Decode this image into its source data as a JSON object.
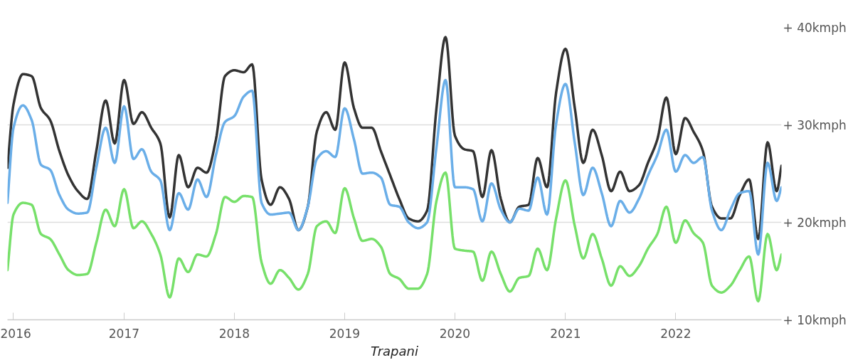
{
  "chart_data": {
    "type": "line",
    "title": "Trapani",
    "x": [
      "2015-12-12",
      "2016-01",
      "2016-02",
      "2016-03",
      "2016-04",
      "2016-05",
      "2016-06",
      "2016-07",
      "2016-08",
      "2016-09",
      "2016-10",
      "2016-11",
      "2016-12",
      "2017-01",
      "2017-02",
      "2017-03",
      "2017-04",
      "2017-05",
      "2017-06",
      "2017-07",
      "2017-08",
      "2017-09",
      "2017-10",
      "2017-11",
      "2017-12",
      "2018-01",
      "2018-02",
      "2018-03",
      "2018-04",
      "2018-05",
      "2018-06",
      "2018-07",
      "2018-08",
      "2018-09",
      "2018-10",
      "2018-11",
      "2018-12",
      "2019-01",
      "2019-02",
      "2019-03",
      "2019-04",
      "2019-05",
      "2019-06",
      "2019-07",
      "2019-08",
      "2019-09",
      "2019-10",
      "2019-11",
      "2019-12",
      "2020-01",
      "2020-02",
      "2020-03",
      "2020-04",
      "2020-05",
      "2020-06",
      "2020-07",
      "2020-08",
      "2020-09",
      "2020-10",
      "2020-11",
      "2020-12",
      "2021-01",
      "2021-02",
      "2021-03",
      "2021-04",
      "2021-05",
      "2021-06",
      "2021-07",
      "2021-08",
      "2021-09",
      "2021-10",
      "2021-11",
      "2021-12",
      "2022-01",
      "2022-02",
      "2022-03",
      "2022-04",
      "2022-05",
      "2022-06",
      "2022-07",
      "2022-08",
      "2022-09",
      "2022-10",
      "2022-11",
      "2022-12",
      "2022-12-17"
    ],
    "series": [
      {
        "color": "#333333",
        "values": [
          25.6,
          32.1,
          35.2,
          35.0,
          31.7,
          30.5,
          27.3,
          24.8,
          23.2,
          22.4,
          27.3,
          32.5,
          28.1,
          34.6,
          30.1,
          31.3,
          29.7,
          28.1,
          20.5,
          26.9,
          23.6,
          25.6,
          25.1,
          28.5,
          35.0,
          35.6,
          35.4,
          36.2,
          24.4,
          21.8,
          23.6,
          22.4,
          19.2,
          21.6,
          29.3,
          31.3,
          29.5,
          36.4,
          31.7,
          29.7,
          29.7,
          27.3,
          24.8,
          22.4,
          20.4,
          20.1,
          21.2,
          31.7,
          39.0,
          28.9,
          27.5,
          27.3,
          22.6,
          27.4,
          22.4,
          20.0,
          21.6,
          21.8,
          26.6,
          23.6,
          33.3,
          37.8,
          31.7,
          26.1,
          29.5,
          26.9,
          23.2,
          25.2,
          23.2,
          23.8,
          26.1,
          28.5,
          32.8,
          27.0,
          30.7,
          29.3,
          27.3,
          21.6,
          20.4,
          20.4,
          22.8,
          24.4,
          18.3,
          28.2,
          23.2,
          25.8
        ]
      },
      {
        "color": "#6aaee8",
        "values": [
          22.0,
          29.7,
          32.0,
          30.5,
          25.9,
          25.4,
          22.8,
          21.3,
          20.9,
          21.0,
          25.6,
          29.7,
          26.1,
          31.9,
          26.5,
          27.5,
          25.2,
          24.3,
          19.2,
          23.0,
          21.3,
          24.4,
          22.6,
          26.9,
          30.3,
          30.9,
          32.9,
          33.5,
          22.0,
          20.8,
          20.9,
          21.0,
          19.2,
          21.6,
          26.5,
          27.3,
          26.7,
          31.7,
          28.5,
          25.0,
          25.1,
          24.6,
          21.8,
          21.6,
          20.0,
          19.4,
          20.0,
          27.7,
          34.6,
          23.6,
          23.6,
          23.4,
          20.1,
          24.0,
          21.3,
          20.0,
          21.4,
          21.2,
          24.6,
          20.8,
          30.1,
          34.2,
          28.1,
          22.8,
          25.6,
          23.0,
          19.6,
          22.2,
          21.0,
          22.4,
          24.8,
          26.9,
          29.5,
          25.2,
          26.9,
          26.1,
          26.7,
          21.2,
          19.2,
          21.3,
          23.0,
          23.2,
          16.7,
          26.1,
          22.2,
          23.6
        ]
      },
      {
        "color": "#77e06a",
        "values": [
          15.1,
          20.8,
          22.0,
          21.8,
          18.8,
          18.3,
          16.7,
          15.1,
          14.6,
          14.7,
          17.9,
          21.3,
          19.6,
          23.4,
          19.4,
          20.1,
          18.8,
          16.7,
          12.3,
          16.3,
          14.9,
          16.7,
          16.5,
          18.8,
          22.6,
          22.1,
          22.7,
          22.6,
          15.9,
          13.7,
          15.1,
          14.3,
          13.1,
          14.7,
          19.6,
          20.1,
          18.9,
          23.5,
          20.4,
          18.1,
          18.3,
          17.5,
          14.7,
          14.2,
          13.2,
          13.2,
          14.7,
          22.2,
          25.1,
          17.3,
          17.1,
          17.0,
          14.0,
          17.0,
          14.7,
          12.9,
          14.3,
          14.5,
          17.3,
          15.1,
          20.4,
          24.3,
          19.6,
          16.3,
          18.8,
          16.3,
          13.5,
          15.5,
          14.5,
          15.5,
          17.3,
          18.8,
          21.6,
          17.9,
          20.2,
          18.9,
          17.9,
          13.5,
          12.8,
          13.5,
          15.1,
          16.5,
          11.9,
          18.8,
          15.1,
          16.7
        ]
      }
    ],
    "xlim": [
      "2015-12-12",
      "2022-12-17"
    ],
    "xticks": [
      {
        "value": "2016-01",
        "label": "2016"
      },
      {
        "value": "2017-01",
        "label": "2017"
      },
      {
        "value": "2018-01",
        "label": "2018"
      },
      {
        "value": "2019-01",
        "label": "2019"
      },
      {
        "value": "2020-01",
        "label": "2020"
      },
      {
        "value": "2021-01",
        "label": "2021"
      },
      {
        "value": "2022-01",
        "label": "2022"
      }
    ],
    "ylim": [
      10,
      40
    ],
    "yticks": [
      {
        "value": 10,
        "label": "+ 10kmph"
      },
      {
        "value": 20,
        "label": "+ 20kmph"
      },
      {
        "value": 30,
        "label": "+ 30kmph"
      },
      {
        "value": 40,
        "label": "+ 40kmph"
      }
    ],
    "grid": "y",
    "marker": "none",
    "line_style": "solid"
  }
}
